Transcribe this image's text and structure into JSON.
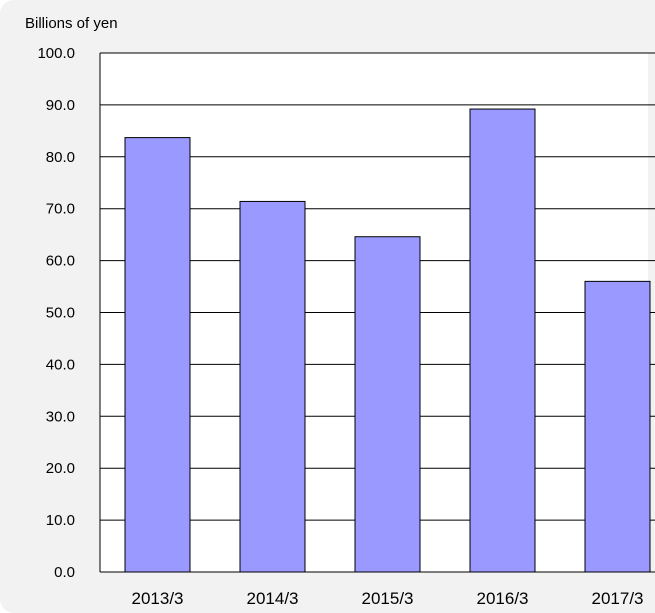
{
  "chart_data": {
    "type": "bar",
    "ylabel": "Billions of yen",
    "categories": [
      "2013/3",
      "2014/3",
      "2015/3",
      "2016/3",
      "2017/3"
    ],
    "values": [
      83.7,
      71.4,
      64.6,
      89.2,
      56.0
    ],
    "ylim": [
      0,
      100
    ],
    "yticks": [
      "0.0",
      "10.0",
      "20.0",
      "30.0",
      "40.0",
      "50.0",
      "60.0",
      "70.0",
      "80.0",
      "90.0",
      "100.0"
    ],
    "grid": true,
    "legend": "none",
    "bar_color": "#9999ff",
    "bar_border_color": "#000000",
    "plot_background": "#ffffff",
    "page_background": "#f2f2f2"
  }
}
